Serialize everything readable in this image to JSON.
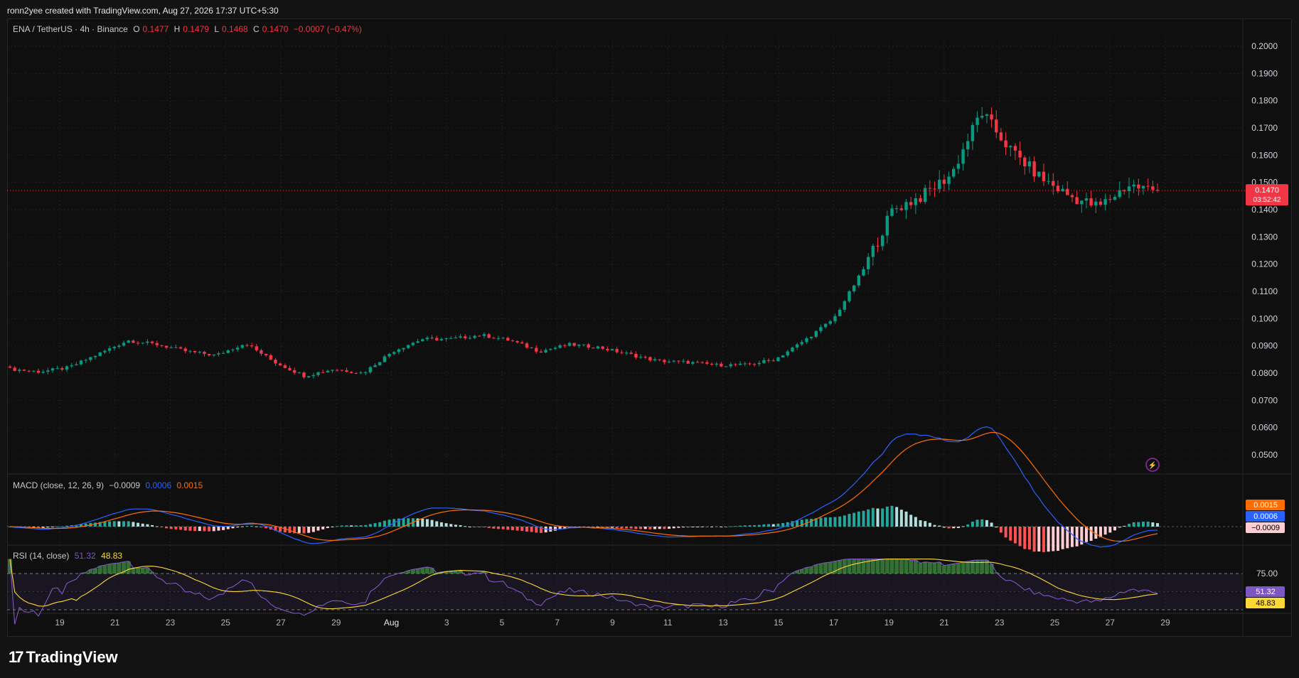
{
  "header": {
    "created_line": "ronn2yee created with TradingView.com, Aug 27, 2026 17:37 UTC+5:30"
  },
  "legend": {
    "symbol": "ENA / TetherUS · 4h · Binance",
    "o_label": "O",
    "o_value": "0.1477",
    "h_label": "H",
    "h_value": "0.1479",
    "l_label": "L",
    "l_value": "0.1468",
    "c_label": "C",
    "c_value": "0.1470",
    "change": "−0.0007 (−0.47%)"
  },
  "price_axis": {
    "ticks": [
      "0.2000",
      "0.1900",
      "0.1800",
      "0.1700",
      "0.1600",
      "0.1500",
      "0.1400",
      "0.1300",
      "0.1200",
      "0.1100",
      "0.1000",
      "0.0900",
      "0.0800",
      "0.0700",
      "0.0600",
      "0.0500"
    ],
    "last_price_label": "0.1470",
    "countdown_label": "03:52:42"
  },
  "macd_panel": {
    "title": "MACD (close, 12, 26, 9)",
    "hist_value": "−0.0009",
    "macd_value": "0.0006",
    "signal_value": "0.0015",
    "badge_signal": "0.0015",
    "badge_macd": "0.0006",
    "badge_hist": "−0.0009"
  },
  "rsi_panel": {
    "title": "RSI (14, close)",
    "rsi_value": "51.32",
    "ma_value": "48.83",
    "level_label": "75.00",
    "badge_rsi": "51.32",
    "badge_ma": "48.83"
  },
  "time_axis": {
    "labels": [
      "19",
      "21",
      "23",
      "25",
      "27",
      "29",
      "Aug",
      "3",
      "5",
      "7",
      "9",
      "11",
      "13",
      "15",
      "17",
      "19",
      "21",
      "23",
      "25",
      "27",
      "29"
    ]
  },
  "colors": {
    "up": "#089981",
    "down": "#f23645",
    "macd": "#2962ff",
    "signal": "#ff6d00",
    "rsi": "#7e57c2",
    "rsi_ma": "#fdd835",
    "background": "#0f0f0f",
    "grid": "#1f1f1f"
  },
  "brand": {
    "name": "TradingView"
  },
  "chart_data": {
    "type": "candlestick",
    "symbol": "ENA / TetherUS",
    "interval": "4h",
    "exchange": "Binance",
    "x_axis_labels": [
      "19",
      "21",
      "23",
      "25",
      "27",
      "29",
      "Aug",
      "3",
      "5",
      "7",
      "9",
      "11",
      "13",
      "15",
      "17",
      "19",
      "21",
      "23",
      "25",
      "27",
      "29"
    ],
    "ylim": [
      0.045,
      0.205
    ],
    "close_path_approx": [
      {
        "date": "Jul 18",
        "close": 0.0815
      },
      {
        "date": "Jul 20",
        "close": 0.0805
      },
      {
        "date": "Jul 21",
        "close": 0.082
      },
      {
        "date": "Jul 22",
        "close": 0.087
      },
      {
        "date": "Jul 23",
        "close": 0.092
      },
      {
        "date": "Jul 24",
        "close": 0.0905
      },
      {
        "date": "Jul 25",
        "close": 0.088
      },
      {
        "date": "Jul 27",
        "close": 0.0865
      },
      {
        "date": "Jul 28",
        "close": 0.091
      },
      {
        "date": "Jul 28",
        "close": 0.084
      },
      {
        "date": "Jul 30",
        "close": 0.079
      },
      {
        "date": "Aug 1",
        "close": 0.0815
      },
      {
        "date": "Aug 2",
        "close": 0.08
      },
      {
        "date": "Aug 3",
        "close": 0.088
      },
      {
        "date": "Aug 4",
        "close": 0.0925
      },
      {
        "date": "Aug 6",
        "close": 0.0925
      },
      {
        "date": "Aug 7",
        "close": 0.094
      },
      {
        "date": "Aug 8",
        "close": 0.092
      },
      {
        "date": "Aug 10",
        "close": 0.088
      },
      {
        "date": "Aug 11",
        "close": 0.0905
      },
      {
        "date": "Aug 12",
        "close": 0.0895
      },
      {
        "date": "Aug 13",
        "close": 0.087
      },
      {
        "date": "Aug 14",
        "close": 0.0845
      },
      {
        "date": "Aug 16",
        "close": 0.084
      },
      {
        "date": "Aug 17",
        "close": 0.083
      },
      {
        "date": "Aug 18",
        "close": 0.083
      },
      {
        "date": "Aug 19",
        "close": 0.085
      },
      {
        "date": "Aug 20",
        "close": 0.092
      },
      {
        "date": "Aug 20",
        "close": 0.1
      },
      {
        "date": "Aug 21",
        "close": 0.118
      },
      {
        "date": "Aug 21",
        "close": 0.14
      },
      {
        "date": "Aug 22",
        "close": 0.145
      },
      {
        "date": "Aug 22",
        "close": 0.153
      },
      {
        "date": "Aug 23",
        "close": 0.176
      },
      {
        "date": "Aug 24",
        "close": 0.162
      },
      {
        "date": "Aug 25",
        "close": 0.152
      },
      {
        "date": "Aug 26",
        "close": 0.145
      },
      {
        "date": "Aug 26",
        "close": 0.141
      },
      {
        "date": "Aug 27",
        "close": 0.149
      },
      {
        "date": "Aug 27",
        "close": 0.147
      }
    ],
    "last": {
      "open": 0.1477,
      "high": 0.1479,
      "low": 0.1468,
      "close": 0.147
    },
    "macd": {
      "params": [
        12,
        26,
        9
      ],
      "histogram": -0.0009,
      "macd": 0.0006,
      "signal": 0.0015
    },
    "rsi": {
      "length": 14,
      "value": 51.32,
      "ma": 48.83,
      "upper_band": 75.0
    }
  }
}
